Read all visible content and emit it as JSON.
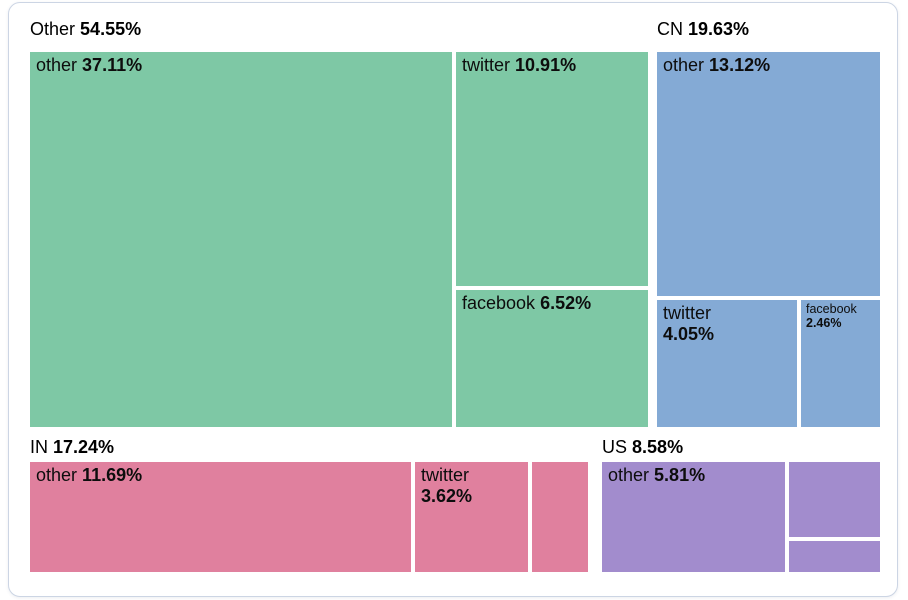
{
  "chart_data": {
    "type": "treemap",
    "title": "",
    "unit": "%",
    "layout": {
      "rows": 2,
      "group_label_position": "top-left-above-group",
      "percent_labels_bold": true,
      "gap_color": "#ffffff"
    },
    "groups": [
      {
        "name": "Other",
        "share": "54.55%",
        "value": 54.55,
        "color": "#7ec8a5",
        "children": [
          {
            "name": "other",
            "share": "37.11%",
            "value": 37.11,
            "label_shown": true
          },
          {
            "name": "twitter",
            "share": "10.91%",
            "value": 10.91,
            "label_shown": true
          },
          {
            "name": "facebook",
            "share": "6.52%",
            "value": 6.52,
            "label_shown": true
          }
        ]
      },
      {
        "name": "CN",
        "share": "19.63%",
        "value": 19.63,
        "color": "#84aad5",
        "children": [
          {
            "name": "other",
            "share": "13.12%",
            "value": 13.12,
            "label_shown": true
          },
          {
            "name": "twitter",
            "share": "4.05%",
            "value": 4.05,
            "label_shown": true
          },
          {
            "name": "facebook",
            "share": "2.46%",
            "value": 2.46,
            "label_shown": true
          }
        ]
      },
      {
        "name": "IN",
        "share": "17.24%",
        "value": 17.24,
        "color": "#e0809e",
        "children": [
          {
            "name": "other",
            "share": "11.69%",
            "value": 11.69,
            "label_shown": true
          },
          {
            "name": "twitter",
            "share": "3.62%",
            "value": 3.62,
            "label_shown": true
          },
          {
            "name": "",
            "share": "",
            "value": null,
            "label_shown": false
          }
        ]
      },
      {
        "name": "US",
        "share": "8.58%",
        "value": 8.58,
        "color": "#a28ccd",
        "children": [
          {
            "name": "other",
            "share": "5.81%",
            "value": 5.81,
            "label_shown": true
          },
          {
            "name": "",
            "share": "",
            "value": null,
            "label_shown": false
          },
          {
            "name": "",
            "share": "",
            "value": null,
            "label_shown": false
          }
        ]
      }
    ]
  },
  "card": {
    "border_color": "#ccd5e4",
    "background": "#ffffff"
  }
}
